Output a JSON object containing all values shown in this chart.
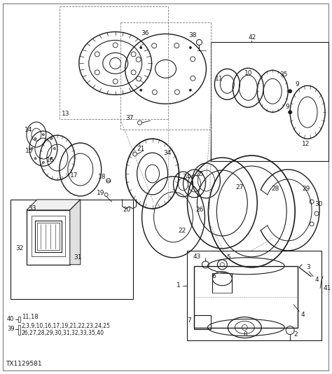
{
  "bg_color": "#ffffff",
  "line_color": "#1a1a1a",
  "fig_width": 4.74,
  "fig_height": 5.34,
  "dpi": 100,
  "part_number": "TX1129581"
}
